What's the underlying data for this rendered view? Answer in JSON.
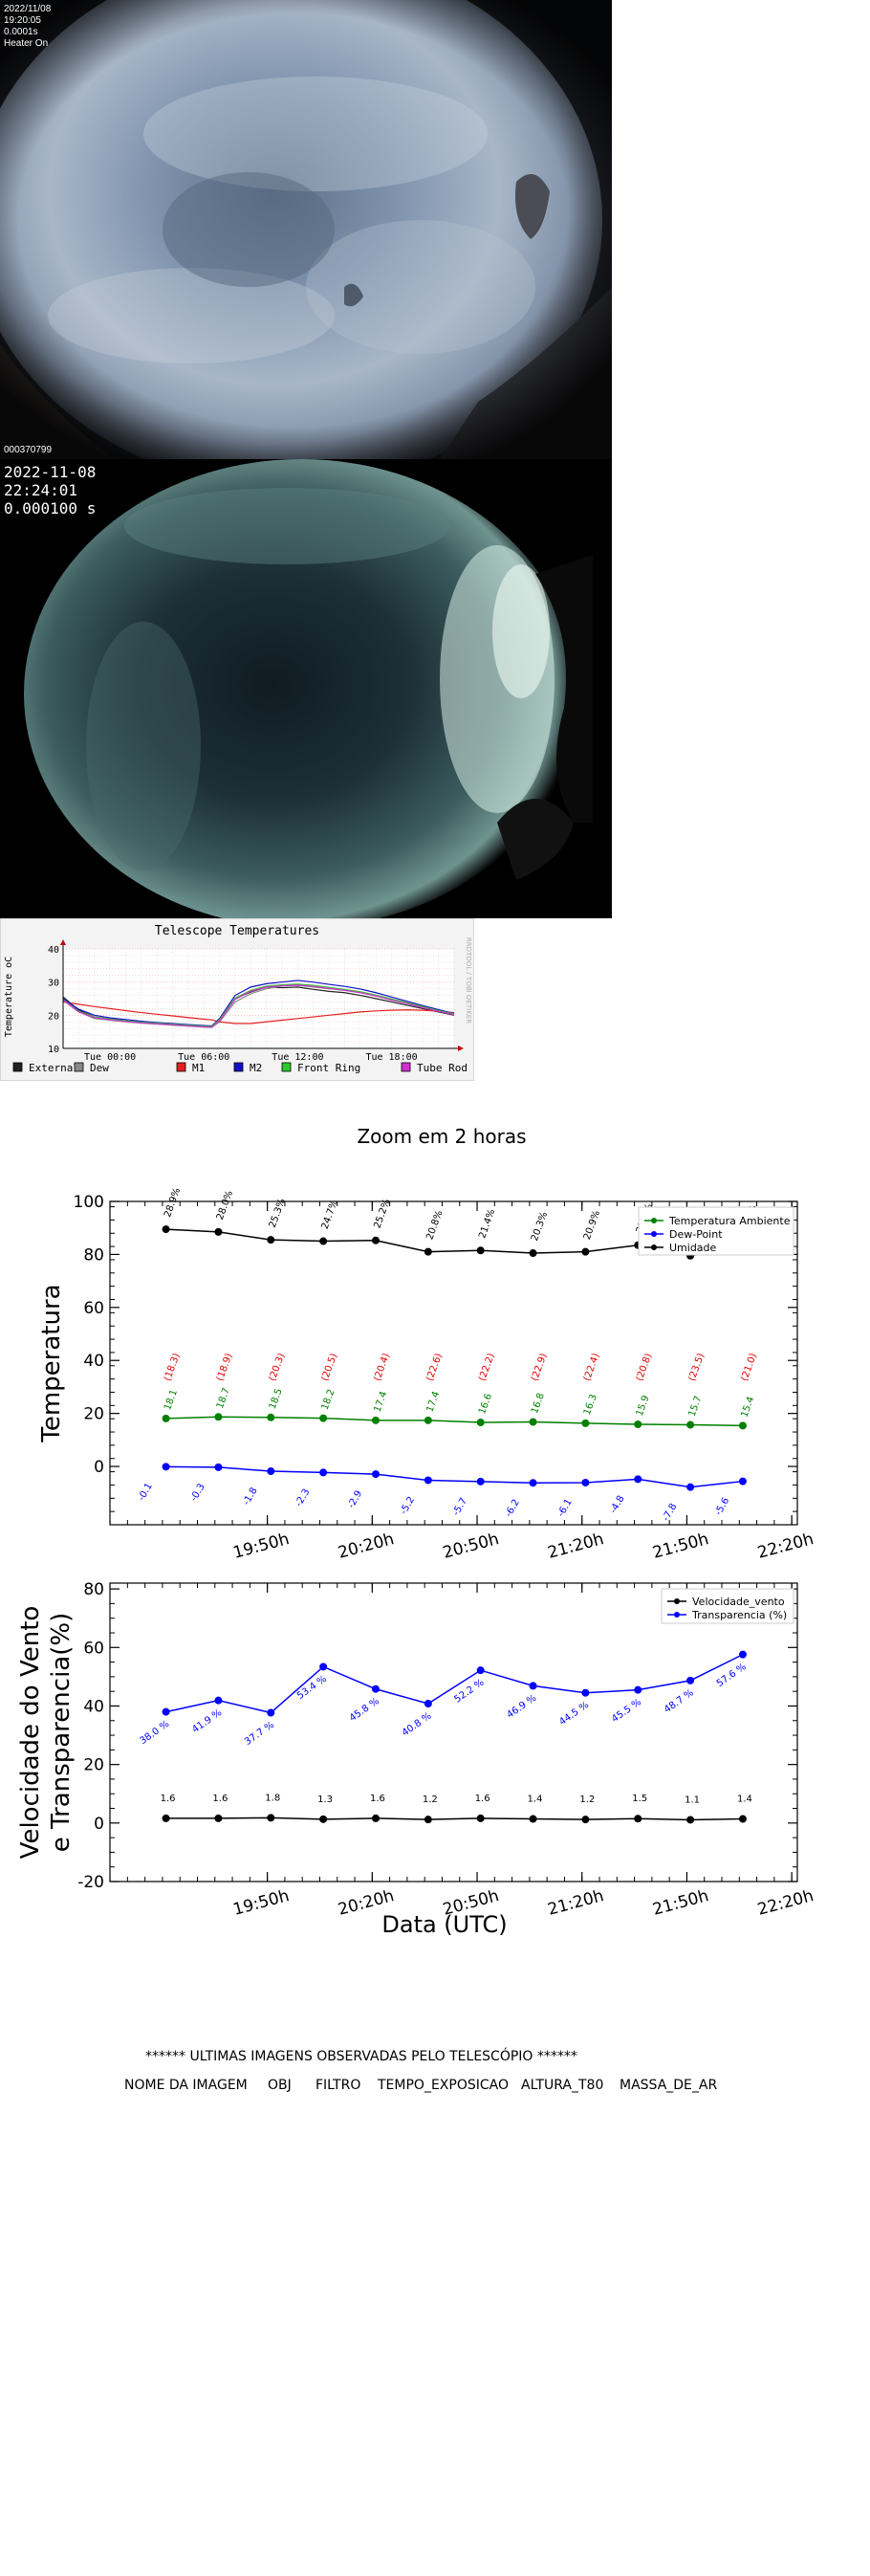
{
  "camera1": {
    "date": "2022/11/08",
    "time": "19:20:05",
    "exposure": "0.0001s",
    "heater": "Heater On",
    "id": "000370799"
  },
  "camera2": {
    "date": "2022-11-08",
    "time": "22:24:01",
    "exposure": "0.000100 s"
  },
  "chart_data": [
    {
      "type": "line",
      "title": "Telescope Temperatures",
      "ylabel": "Temperature oC",
      "watermark": "RRDTOOL / TOBI OETIKER",
      "xlim": [
        -3,
        22
      ],
      "ylim": [
        10,
        40
      ],
      "y_ticks": [
        10,
        20,
        30,
        40
      ],
      "x_ticks": [
        {
          "x": 0,
          "label": "Tue 00:00"
        },
        {
          "x": 6,
          "label": "Tue 06:00"
        },
        {
          "x": 12,
          "label": "Tue 12:00"
        },
        {
          "x": 18,
          "label": "Tue 18:00"
        }
      ],
      "grid": true,
      "legend_position": "bottom",
      "x": [
        -3,
        -2,
        -1,
        0,
        1,
        2,
        3,
        4,
        5,
        6,
        6.5,
        7,
        8,
        9,
        10,
        11,
        12,
        13,
        14,
        15,
        16,
        17,
        18,
        19,
        20,
        21,
        22
      ],
      "series": [
        {
          "name": "External",
          "color": "#222222",
          "values": [
            25.5,
            21.5,
            19.5,
            18.8,
            18.3,
            17.9,
            17.5,
            17.2,
            16.9,
            16.6,
            16.5,
            18.5,
            25.0,
            27.0,
            28.5,
            28.3,
            28.5,
            27.8,
            27.2,
            26.8,
            26.0,
            25.0,
            24.0,
            23.0,
            22.0,
            21.0,
            20.0
          ]
        },
        {
          "name": "Dew",
          "color": "#888888",
          "values": [
            24.5,
            21.0,
            19.0,
            18.5,
            18.0,
            17.6,
            17.3,
            17.0,
            16.7,
            16.4,
            16.3,
            18.0,
            24.0,
            26.5,
            28.0,
            28.8,
            29.0,
            28.5,
            28.0,
            27.5,
            26.8,
            25.8,
            24.6,
            23.5,
            22.3,
            21.2,
            20.2
          ]
        },
        {
          "name": "M1",
          "color": "#e32020",
          "values": [
            24.0,
            23.3,
            22.6,
            22.0,
            21.4,
            20.8,
            20.3,
            19.8,
            19.3,
            18.8,
            18.6,
            18.0,
            17.5,
            17.5,
            18.0,
            18.5,
            19.0,
            19.5,
            20.0,
            20.5,
            21.0,
            21.3,
            21.5,
            21.6,
            21.5,
            21.2,
            20.8
          ]
        },
        {
          "name": "M2",
          "color": "#1010c8",
          "values": [
            25.0,
            21.8,
            20.0,
            19.2,
            18.7,
            18.2,
            17.8,
            17.5,
            17.2,
            16.9,
            16.8,
            19.0,
            26.0,
            28.5,
            29.5,
            30.0,
            30.5,
            30.0,
            29.3,
            28.7,
            27.9,
            26.8,
            25.5,
            24.2,
            22.9,
            21.7,
            20.5
          ]
        },
        {
          "name": "Front Ring",
          "color": "#2ec82e",
          "values": [
            24.8,
            21.2,
            19.5,
            18.8,
            18.3,
            17.9,
            17.6,
            17.3,
            17.0,
            16.7,
            16.6,
            18.7,
            25.2,
            27.5,
            28.8,
            29.2,
            29.4,
            29.0,
            28.4,
            27.8,
            27.1,
            26.1,
            24.9,
            23.8,
            22.6,
            21.4,
            20.4
          ]
        },
        {
          "name": "Tube Rod",
          "color": "#d030d0",
          "values": [
            24.6,
            21.0,
            19.3,
            18.6,
            18.1,
            17.7,
            17.4,
            17.1,
            16.8,
            16.5,
            16.4,
            18.4,
            24.8,
            27.2,
            28.5,
            28.9,
            29.1,
            28.7,
            28.1,
            27.5,
            26.8,
            25.8,
            24.6,
            23.5,
            22.3,
            21.2,
            20.2
          ]
        }
      ]
    },
    {
      "type": "line",
      "title": "Zoom em 2 horas",
      "xlabel": "",
      "ylabel": "Temperatura",
      "xlim": [
        19.083,
        22.36
      ],
      "ylim": [
        -22,
        100
      ],
      "y_ticks": [
        0,
        20,
        40,
        60,
        80,
        100
      ],
      "x_ticks": [
        "19:50h",
        "20:20h",
        "20:50h",
        "21:20h",
        "21:50h",
        "22:20h"
      ],
      "legend_position": "top-right",
      "x": [
        "19:21h",
        "19:36h",
        "19:51h",
        "20:06h",
        "20:21h",
        "20:36h",
        "20:51h",
        "21:06h",
        "21:21h",
        "21:36h",
        "21:51h",
        "22:06h"
      ],
      "series": [
        {
          "name": "Temperatura Ambiente",
          "color": "#008000",
          "values": [
            18.1,
            18.7,
            18.5,
            18.2,
            17.4,
            17.4,
            16.6,
            16.8,
            16.3,
            15.9,
            15.7,
            15.4
          ]
        },
        {
          "name": "Dew-Point",
          "color": "#0000ff",
          "values": [
            -0.1,
            -0.3,
            -1.8,
            -2.3,
            -2.9,
            -5.2,
            -5.7,
            -6.2,
            -6.1,
            -4.8,
            -7.8,
            -5.6
          ]
        },
        {
          "name": "Umidade",
          "color": "#000000",
          "values": [
            28.9,
            28.0,
            25.3,
            24.7,
            25.2,
            20.8,
            21.4,
            20.3,
            20.9,
            23.4,
            19.2,
            23.0
          ],
          "plotted_y": [
            89.5,
            88.5,
            85.5,
            85.0,
            85.3,
            81.0,
            81.5,
            80.5,
            81.0,
            83.5,
            79.5,
            83.0
          ]
        }
      ],
      "annotations": {
        "umidade_labels": [
          "28.9%",
          "28.0%",
          "25.3%",
          "24.7%",
          "25.2%",
          "20.8%",
          "21.4%",
          "20.3%",
          "20.9%",
          "23.4%",
          "19.2%",
          "23.0%"
        ],
        "red_labels": [
          "(18.3)",
          "(18.9)",
          "(20.3)",
          "(20.5)",
          "(20.4)",
          "(22.6)",
          "(22.2)",
          "(22.9)",
          "(22.4)",
          "(20.8)",
          "(23.5)",
          "(21.0)"
        ],
        "temp_labels": [
          "18.1",
          "18.7",
          "18.5",
          "18.2",
          "17.4",
          "17.4",
          "16.6",
          "16.8",
          "16.3",
          "15.9",
          "15.7",
          "15.4"
        ],
        "dew_labels": [
          "-0.1",
          "-0.3",
          "-1.8",
          "-2.3",
          "-2.9",
          "-5.2",
          "-5.7",
          "-6.2",
          "-6.1",
          "-4.8",
          "-7.8",
          "-5.6"
        ]
      }
    },
    {
      "type": "line",
      "xlabel": "Data (UTC)",
      "ylabel": "Velocidade do Vento\ne Transparencia(%)",
      "xlim": [
        19.083,
        22.36
      ],
      "ylim": [
        -20,
        82
      ],
      "y_ticks": [
        -20,
        0,
        20,
        40,
        60,
        80
      ],
      "x_ticks": [
        "19:50h",
        "20:20h",
        "20:50h",
        "21:20h",
        "21:50h",
        "22:20h"
      ],
      "legend_position": "top-right",
      "x": [
        "19:21h",
        "19:36h",
        "19:51h",
        "20:06h",
        "20:21h",
        "20:36h",
        "20:51h",
        "21:06h",
        "21:21h",
        "21:36h",
        "21:51h",
        "22:06h"
      ],
      "series": [
        {
          "name": "Velocidade_vento",
          "color": "#000000",
          "values": [
            1.6,
            1.6,
            1.8,
            1.3,
            1.6,
            1.2,
            1.6,
            1.4,
            1.2,
            1.5,
            1.1,
            1.4
          ],
          "labels": [
            "1.6",
            "1.6",
            "1.8",
            "1.3",
            "1.6",
            "1.2",
            "1.6",
            "1.4",
            "1.2",
            "1.5",
            "1.1",
            "1.4"
          ]
        },
        {
          "name": "Transparencia (%)",
          "color": "#0000ff",
          "values": [
            38.0,
            41.9,
            37.7,
            53.4,
            45.8,
            40.8,
            52.2,
            46.9,
            44.5,
            45.5,
            48.7,
            57.6
          ],
          "labels": [
            "38.0 %",
            "41.9 %",
            "37.7 %",
            "53.4 %",
            "45.8 %",
            "40.8 %",
            "52.2 %",
            "46.9 %",
            "44.5 %",
            "45.5 %",
            "48.7 %",
            "57.6 %"
          ]
        }
      ]
    }
  ],
  "footer": {
    "heading": "****** ULTIMAS IMAGENS OBSERVADAS PELO TELESCÓPIO ******",
    "columns": [
      "NOME DA IMAGEM",
      "OBJ",
      "FILTRO",
      "TEMPO_EXPOSICAO",
      "ALTURA_T80",
      "MASSA_DE_AR"
    ]
  }
}
